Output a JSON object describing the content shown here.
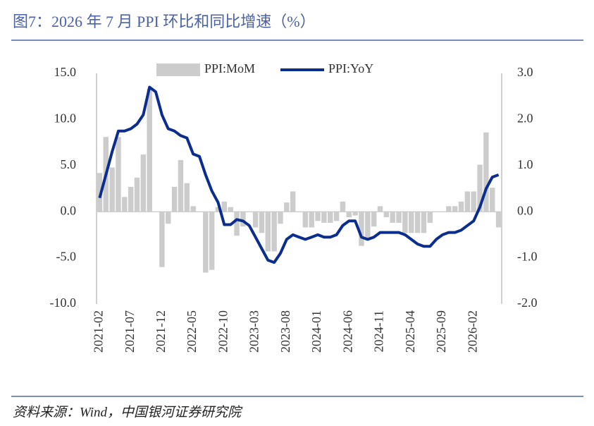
{
  "chart_data": {
    "type": "combo",
    "title": "图7：2026 年 7 月 PPI 环比和同比增速（%）",
    "source": "资料来源：Wind，中国银河证券研究院",
    "categories": [
      "2021-02",
      null,
      null,
      null,
      null,
      "2021-07",
      null,
      null,
      null,
      null,
      "2021-12",
      null,
      null,
      null,
      null,
      "2022-05",
      null,
      null,
      null,
      null,
      "2022-10",
      null,
      null,
      null,
      null,
      "2023-03",
      null,
      null,
      null,
      null,
      "2023-08",
      null,
      null,
      null,
      null,
      "2024-01",
      null,
      null,
      null,
      null,
      "2024-06",
      null,
      null,
      null,
      null,
      "2024-11",
      null,
      null,
      null,
      null,
      "2025-04",
      null,
      null,
      null,
      null,
      "2025-09",
      null,
      null,
      null,
      null,
      "2026-02",
      null,
      null,
      null,
      null
    ],
    "series": [
      {
        "name": "PPI:MoM",
        "type": "bar",
        "color": "#cccccc",
        "values": [
          4.2,
          8.1,
          4.8,
          8.1,
          1.6,
          2.7,
          3.7,
          6.2,
          13.3,
          0,
          -6.0,
          -1.3,
          2.7,
          5.6,
          3.1,
          0.6,
          0,
          -6.6,
          -6.3,
          0.5,
          1.1,
          0.5,
          -2.6,
          -1.6,
          0,
          -1.7,
          -2.3,
          -4.3,
          -4.3,
          -1.3,
          1.0,
          2.2,
          0,
          -1.7,
          -1.7,
          -1.0,
          -1.2,
          -1.2,
          -1.0,
          1.1,
          -0.6,
          -0.4,
          -3.7,
          -3.1,
          -1.6,
          0.6,
          -0.6,
          -1.2,
          -1.2,
          -2.3,
          -2.3,
          -2.3,
          -2.3,
          -1.2,
          0,
          0,
          0.6,
          0.6,
          1.1,
          2.2,
          2.2,
          5.1,
          8.6,
          2.6,
          -1.7
        ]
      },
      {
        "name": "PPI:YoY",
        "type": "line",
        "axis": "y2",
        "color": "#0b2d8e",
        "values": [
          0.3,
          0.8,
          1.3,
          1.75,
          1.75,
          1.8,
          1.9,
          2.1,
          2.7,
          2.6,
          2.1,
          1.8,
          1.75,
          1.65,
          1.6,
          1.25,
          1.2,
          0.8,
          0.45,
          0.2,
          -0.28,
          -0.28,
          -0.17,
          -0.2,
          -0.3,
          -0.55,
          -0.8,
          -1.05,
          -1.1,
          -0.9,
          -0.6,
          -0.5,
          -0.55,
          -0.6,
          -0.55,
          -0.5,
          -0.55,
          -0.55,
          -0.5,
          -0.3,
          -0.2,
          -0.2,
          -0.55,
          -0.6,
          -0.55,
          -0.45,
          -0.45,
          -0.45,
          -0.45,
          -0.5,
          -0.6,
          -0.7,
          -0.75,
          -0.75,
          -0.6,
          -0.5,
          -0.45,
          -0.45,
          -0.4,
          -0.3,
          -0.2,
          0.1,
          0.5,
          0.75,
          0.8
        ]
      }
    ],
    "ylim": [
      -10,
      15
    ],
    "yticks": [
      {
        "value": -10,
        "label": "-10.0"
      },
      {
        "value": -5,
        "label": "-5.0"
      },
      {
        "value": 0,
        "label": "0.0"
      },
      {
        "value": 5,
        "label": "5.0"
      },
      {
        "value": 10,
        "label": "10.0"
      },
      {
        "value": 15,
        "label": "15.0"
      }
    ],
    "y2lim": [
      -2,
      3
    ],
    "y2ticks": [
      {
        "value": -2,
        "label": "-2.0"
      },
      {
        "value": -1,
        "label": "-1.0"
      },
      {
        "value": 0,
        "label": "0.0"
      },
      {
        "value": 1,
        "label": "1.0"
      },
      {
        "value": 2,
        "label": "2.0"
      },
      {
        "value": 3,
        "label": "3.0"
      }
    ],
    "legend": "top"
  }
}
